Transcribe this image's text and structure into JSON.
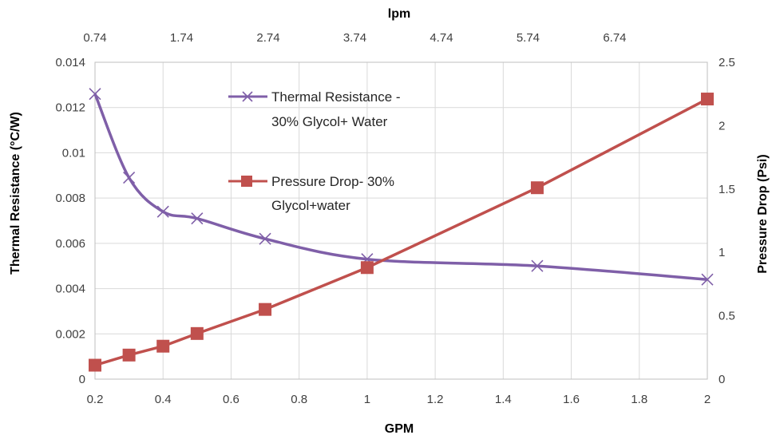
{
  "chart_data": {
    "type": "line",
    "xlabel": "GPM",
    "x2label": "lpm",
    "ylabel": "Thermal Resistance (°C/W)",
    "y2label": "Pressure Drop (Psi)",
    "xlim": [
      0.2,
      2.0
    ],
    "xticks": [
      "0.2",
      "0.4",
      "0.6",
      "0.8",
      "1",
      "1.2",
      "1.4",
      "1.6",
      "1.8",
      "2"
    ],
    "x2ticks": [
      "0.74",
      "1.74",
      "2.74",
      "3.74",
      "4.74",
      "5.74",
      "6.74"
    ],
    "ylim": [
      0,
      0.014
    ],
    "yticks": [
      "0",
      "0.002",
      "0.004",
      "0.006",
      "0.008",
      "0.01",
      "0.012",
      "0.014"
    ],
    "y2lim": [
      0,
      2.5
    ],
    "y2ticks": [
      "0",
      "0.5",
      "1",
      "1.5",
      "2",
      "2.5"
    ],
    "grid": true,
    "series": [
      {
        "name": "Thermal Resistance - 30% Glycol+ Water",
        "legend_lines": [
          "Thermal Resistance -",
          "30% Glycol+ Water"
        ],
        "axis": "left",
        "marker": "x",
        "color": "#7f5fa8",
        "x": [
          0.2,
          0.3,
          0.4,
          0.5,
          0.7,
          1.0,
          1.5,
          2.0
        ],
        "y": [
          0.0126,
          0.0089,
          0.0074,
          0.0071,
          0.0062,
          0.0053,
          0.005,
          0.0044
        ]
      },
      {
        "name": "Pressure Drop- 30% Glycol+water",
        "legend_lines": [
          "Pressure Drop- 30%",
          "Glycol+water"
        ],
        "axis": "right",
        "marker": "square",
        "color": "#c0504d",
        "x": [
          0.2,
          0.3,
          0.4,
          0.5,
          0.7,
          1.0,
          1.5,
          2.0
        ],
        "y": [
          0.11,
          0.19,
          0.26,
          0.36,
          0.55,
          0.88,
          1.51,
          2.21
        ]
      }
    ]
  }
}
